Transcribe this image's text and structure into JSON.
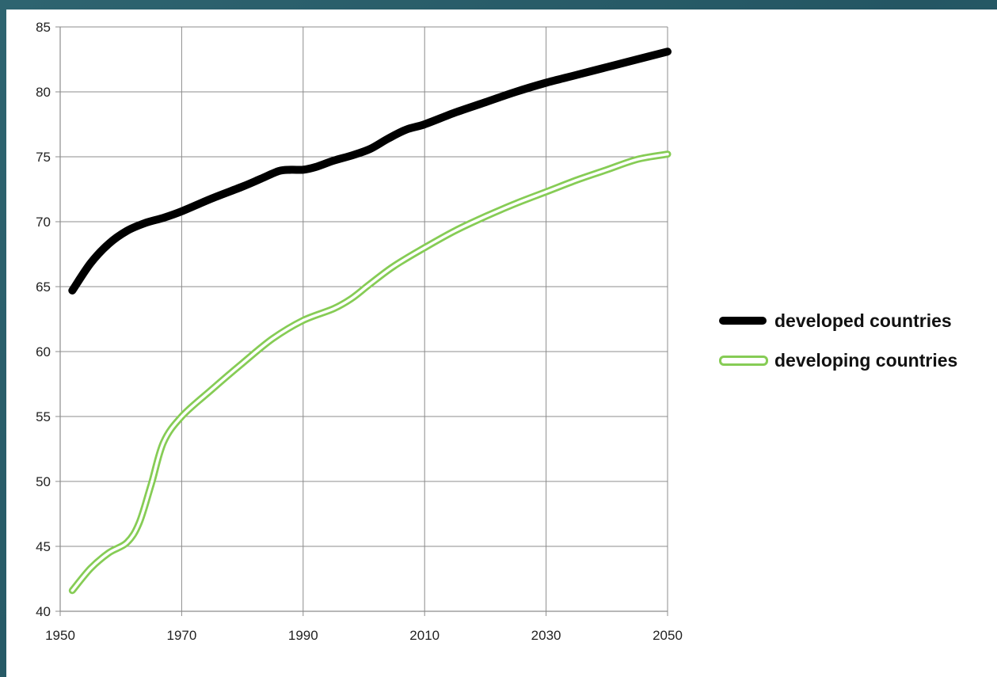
{
  "chart_data": {
    "type": "line",
    "title": "",
    "xlabel": "",
    "ylabel": "",
    "xlim": [
      1950,
      2050
    ],
    "ylim": [
      40,
      85
    ],
    "x_ticks": [
      "1950",
      "1970",
      "1990",
      "2010",
      "2030",
      "2050"
    ],
    "y_ticks": [
      "40",
      "45",
      "50",
      "55",
      "60",
      "65",
      "70",
      "75",
      "80",
      "85"
    ],
    "grid": true,
    "legend_position": "right",
    "series": [
      {
        "name": "developed countries",
        "color": "#000000",
        "style": "solid-thick",
        "x": [
          1952,
          1955,
          1958,
          1961,
          1964,
          1967,
          1970,
          1975,
          1980,
          1983,
          1986,
          1988,
          1990,
          1992,
          1995,
          1998,
          2001,
          2004,
          2007,
          2010,
          2015,
          2020,
          2025,
          2030,
          2035,
          2040,
          2045,
          2050
        ],
        "y": [
          64.7,
          66.8,
          68.3,
          69.3,
          69.9,
          70.3,
          70.8,
          71.8,
          72.7,
          73.3,
          73.9,
          74.0,
          74.0,
          74.2,
          74.7,
          75.1,
          75.6,
          76.4,
          77.1,
          77.5,
          78.4,
          79.2,
          80.0,
          80.7,
          81.3,
          81.9,
          82.5,
          83.1
        ]
      },
      {
        "name": "developing countries",
        "color": "#86cc55",
        "style": "double-outline",
        "x": [
          1952,
          1955,
          1958,
          1961,
          1963,
          1965,
          1967,
          1970,
          1975,
          1980,
          1985,
          1990,
          1995,
          1998,
          2001,
          2005,
          2010,
          2015,
          2020,
          2025,
          2030,
          2035,
          2040,
          2045,
          2050
        ],
        "y": [
          41.6,
          43.3,
          44.5,
          45.3,
          46.8,
          49.8,
          53.0,
          55.0,
          57.1,
          59.1,
          61.0,
          62.4,
          63.3,
          64.1,
          65.2,
          66.6,
          68.0,
          69.3,
          70.4,
          71.4,
          72.3,
          73.2,
          74.0,
          74.8,
          75.2
        ]
      }
    ]
  }
}
